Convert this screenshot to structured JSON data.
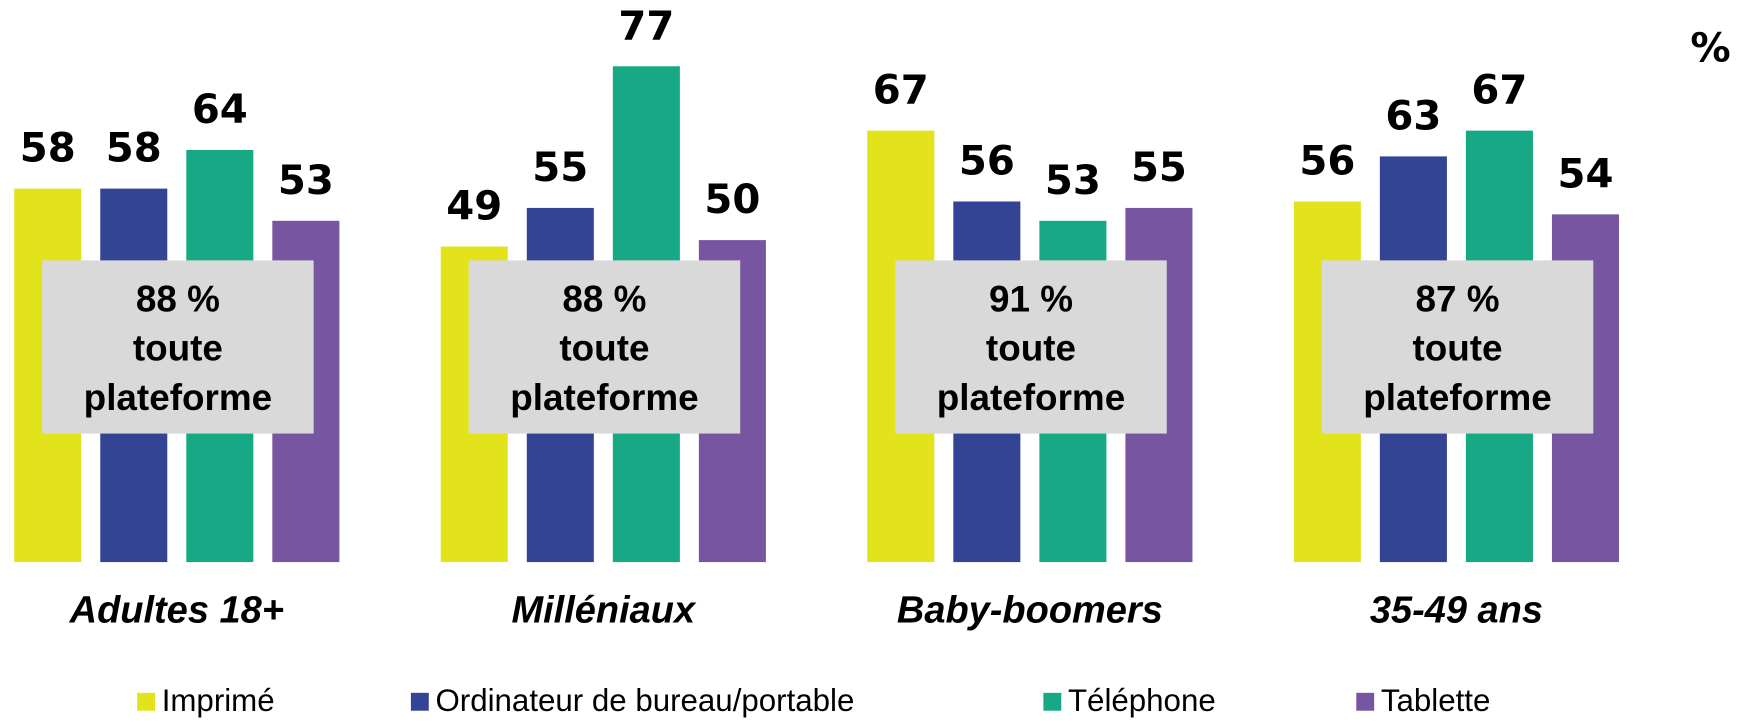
{
  "chart_data": {
    "type": "bar",
    "categories": [
      "Adultes 18+",
      "Milléniaux",
      "Baby-boomers",
      "35-49 ans"
    ],
    "series": [
      {
        "name": "Imprimé",
        "color": "#e2e31a",
        "values": [
          58,
          49,
          67,
          56
        ]
      },
      {
        "name": "Ordinateur de bureau/portable",
        "color": "#334494",
        "values": [
          58,
          55,
          56,
          63
        ]
      },
      {
        "name": "Téléphone",
        "color": "#17a985",
        "values": [
          64,
          77,
          53,
          67
        ]
      },
      {
        "name": "Tablette",
        "color": "#7755a0",
        "values": [
          53,
          50,
          55,
          54
        ]
      }
    ],
    "annotations": [
      [
        "88 %",
        "toute",
        "plateforme"
      ],
      [
        "88 %",
        "toute",
        "plateforme"
      ],
      [
        "91 %",
        "toute",
        "plateforme"
      ],
      [
        "87 %",
        "toute",
        "plateforme"
      ]
    ],
    "unit_label": "%",
    "ylim": [
      0,
      80
    ]
  }
}
